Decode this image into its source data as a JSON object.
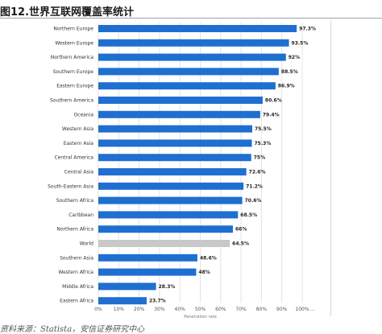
{
  "title": "图12.世界互联网覆盖率统计",
  "source": "资料来源：Statista，安信证券研究中心",
  "colors": {
    "bar": "#1f6fd1",
    "highlight": "#c8c8c8",
    "grid": "#e3e3e3",
    "label": "#333333"
  },
  "chart_data": {
    "type": "bar",
    "orientation": "horizontal",
    "categories": [
      "Northern Europe",
      "Western Europe",
      "Northern America",
      "Southern Europe",
      "Eastern Europe",
      "Southern America",
      "Oceania",
      "Western Asia",
      "Eastern Asia",
      "Central America",
      "Central Asia",
      "South-Eastern Asia",
      "Southern Africa",
      "Caribbean",
      "Northern Africa",
      "World",
      "Southern Asia",
      "Western Africa",
      "Middle Africa",
      "Eastern Africa"
    ],
    "values": [
      97.3,
      93.5,
      92,
      88.5,
      86.9,
      80.6,
      79.4,
      75.5,
      75.3,
      75,
      72.6,
      71.2,
      70.6,
      68.5,
      66,
      64.5,
      48.6,
      48,
      28.3,
      23.7
    ],
    "value_labels": [
      "97.3%",
      "93.5%",
      "92%",
      "88.5%",
      "86.9%",
      "80.6%",
      "79.4%",
      "75.5%",
      "75.3%",
      "75%",
      "72.6%",
      "71.2%",
      "70.6%",
      "68.5%",
      "66%",
      "64.5%",
      "48.6%",
      "48%",
      "28.3%",
      "23.7%"
    ],
    "highlight_category": "World",
    "xlabel": "Penetration rate",
    "xlim": [
      0,
      100
    ],
    "xticks": [
      "0%",
      "10%",
      "20%",
      "30%",
      "40%",
      "50%",
      "60%",
      "70%",
      "80%",
      "90%",
      "100%"
    ],
    "grid": true,
    "legend": "none"
  }
}
